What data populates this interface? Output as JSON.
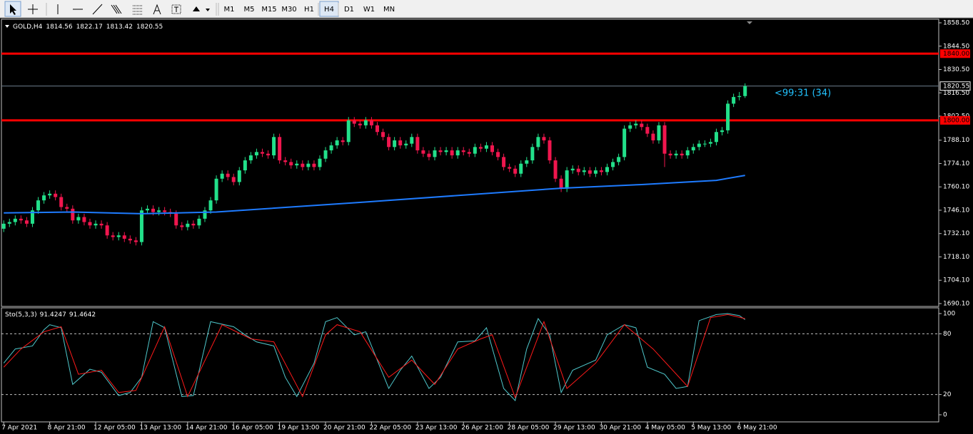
{
  "toolbar": {
    "timeframes": [
      "M1",
      "M5",
      "M15",
      "M30",
      "H1",
      "H4",
      "D1",
      "W1",
      "MN"
    ],
    "active": 5
  },
  "chart_data": [
    {
      "type": "candlestick",
      "symbol": "GOLD,H4",
      "open": [
        1735,
        1738,
        1739,
        1741,
        1740,
        1738,
        1746,
        1752,
        1755,
        1756,
        1754,
        1748,
        1747,
        1740,
        1742,
        1739,
        1737,
        1738,
        1737,
        1731,
        1730,
        1731,
        1729,
        1728,
        1727,
        1746,
        1747,
        1745,
        1746,
        1745,
        1744,
        1737,
        1736,
        1738,
        1737,
        1741,
        1746,
        1752,
        1765,
        1768,
        1766,
        1763,
        1770,
        1776,
        1779,
        1781,
        1780,
        1779,
        1790,
        1776,
        1775,
        1773,
        1774,
        1772,
        1774,
        1772,
        1777,
        1782,
        1785,
        1788,
        1787,
        1800,
        1798,
        1797,
        1800,
        1797,
        1793,
        1790,
        1784,
        1788,
        1785,
        1786,
        1790,
        1782,
        1780,
        1778,
        1782,
        1781,
        1782,
        1779,
        1782,
        1781,
        1780,
        1784,
        1783,
        1785,
        1781,
        1778,
        1772,
        1771,
        1768,
        1774,
        1776,
        1784,
        1790,
        1788,
        1776,
        1765,
        1759,
        1770,
        1771,
        1769,
        1770,
        1768,
        1770,
        1769,
        1772,
        1775,
        1778,
        1795,
        1797,
        1798,
        1796,
        1792,
        1788,
        1797,
        1780,
        1779,
        1780,
        1779,
        1782,
        1784,
        1786,
        1786,
        1787,
        1793,
        1794,
        1810,
        1814,
        1814.56
      ],
      "high": [
        1740,
        1741,
        1743,
        1743,
        1742,
        1748,
        1754,
        1757,
        1758,
        1758,
        1756,
        1750,
        1749,
        1744,
        1744,
        1741,
        1740,
        1740,
        1739,
        1733,
        1733,
        1733,
        1731,
        1730,
        1748,
        1749,
        1749,
        1748,
        1748,
        1747,
        1746,
        1739,
        1740,
        1740,
        1743,
        1748,
        1754,
        1767,
        1770,
        1770,
        1768,
        1772,
        1778,
        1781,
        1783,
        1783,
        1782,
        1792,
        1792,
        1778,
        1777,
        1776,
        1776,
        1776,
        1776,
        1779,
        1784,
        1787,
        1790,
        1790,
        1802,
        1802,
        1800,
        1802,
        1802,
        1799,
        1795,
        1792,
        1790,
        1790,
        1788,
        1792,
        1792,
        1784,
        1782,
        1784,
        1784,
        1784,
        1784,
        1784,
        1784,
        1783,
        1786,
        1786,
        1787,
        1787,
        1783,
        1780,
        1774,
        1773,
        1776,
        1778,
        1786,
        1792,
        1792,
        1790,
        1778,
        1767,
        1772,
        1773,
        1773,
        1772,
        1772,
        1772,
        1772,
        1774,
        1777,
        1780,
        1797,
        1799,
        1800,
        1800,
        1798,
        1794,
        1799,
        1799,
        1782,
        1782,
        1782,
        1784,
        1786,
        1788,
        1788,
        1789,
        1795,
        1796,
        1812,
        1816,
        1817,
        1822.17
      ],
      "low": [
        1733,
        1736,
        1737,
        1738,
        1736,
        1736,
        1744,
        1750,
        1753,
        1752,
        1746,
        1745,
        1738,
        1738,
        1737,
        1735,
        1735,
        1735,
        1729,
        1728,
        1728,
        1727,
        1726,
        1725,
        1725,
        1744,
        1743,
        1743,
        1743,
        1742,
        1735,
        1734,
        1734,
        1735,
        1735,
        1739,
        1744,
        1750,
        1763,
        1764,
        1761,
        1761,
        1768,
        1774,
        1777,
        1778,
        1777,
        1777,
        1774,
        1773,
        1771,
        1771,
        1770,
        1770,
        1770,
        1770,
        1775,
        1780,
        1783,
        1785,
        1785,
        1796,
        1795,
        1795,
        1795,
        1791,
        1788,
        1782,
        1782,
        1783,
        1783,
        1784,
        1780,
        1778,
        1776,
        1776,
        1779,
        1779,
        1777,
        1777,
        1779,
        1778,
        1778,
        1781,
        1781,
        1779,
        1776,
        1770,
        1769,
        1766,
        1766,
        1772,
        1774,
        1782,
        1786,
        1774,
        1763,
        1757,
        1757,
        1768,
        1767,
        1767,
        1766,
        1766,
        1767,
        1767,
        1770,
        1773,
        1776,
        1793,
        1795,
        1794,
        1790,
        1786,
        1786,
        1772,
        1777,
        1777,
        1777,
        1777,
        1780,
        1782,
        1784,
        1784,
        1785,
        1791,
        1792,
        1808,
        1812,
        1813.42
      ],
      "close": [
        1738,
        1739,
        1741,
        1740,
        1738,
        1746,
        1752,
        1755,
        1756,
        1754,
        1748,
        1747,
        1740,
        1742,
        1739,
        1737,
        1738,
        1737,
        1731,
        1730,
        1731,
        1729,
        1728,
        1727,
        1746,
        1747,
        1745,
        1746,
        1745,
        1744,
        1737,
        1736,
        1738,
        1737,
        1741,
        1746,
        1752,
        1765,
        1768,
        1766,
        1763,
        1770,
        1776,
        1779,
        1781,
        1780,
        1779,
        1790,
        1776,
        1775,
        1773,
        1774,
        1772,
        1774,
        1772,
        1777,
        1782,
        1785,
        1788,
        1787,
        1800,
        1798,
        1797,
        1800,
        1797,
        1793,
        1790,
        1784,
        1788,
        1785,
        1786,
        1790,
        1782,
        1780,
        1778,
        1782,
        1781,
        1782,
        1779,
        1782,
        1781,
        1780,
        1784,
        1783,
        1785,
        1781,
        1778,
        1772,
        1771,
        1768,
        1774,
        1776,
        1784,
        1790,
        1788,
        1776,
        1765,
        1759,
        1770,
        1771,
        1769,
        1770,
        1768,
        1770,
        1769,
        1772,
        1775,
        1778,
        1795,
        1797,
        1798,
        1796,
        1792,
        1788,
        1797,
        1780,
        1779,
        1780,
        1779,
        1782,
        1784,
        1786,
        1786,
        1787,
        1793,
        1794,
        1810,
        1814,
        1814.56,
        1820.55
      ],
      "up_color": "#22e08a",
      "down_color": "#f0164e",
      "ma": {
        "color": "#1e7bff",
        "x": [
          0,
          12,
          24,
          37,
          62,
          97,
          111,
          124,
          129
        ],
        "values": [
          1744.5,
          1745,
          1744,
          1745,
          1750.8,
          1759.3,
          1761.5,
          1764,
          1767
        ]
      },
      "hlines": [
        {
          "value": 1840,
          "label": "1840.00",
          "color": "#ff0000"
        },
        {
          "value": 1800,
          "label": "1800.00",
          "color": "#ff0000"
        }
      ],
      "price_line": {
        "value": 1820.55,
        "label": "1820.55",
        "color": "#6f7f90"
      },
      "countdown": "<99:31 (34)",
      "ylim": [
        1690.1,
        1858.5
      ],
      "yticks": [
        {
          "value": 1858.5,
          "label": "1858.50"
        },
        {
          "value": 1844.5,
          "label": "1844.50"
        },
        {
          "value": 1830.5,
          "label": "1830.50"
        },
        {
          "value": 1816.5,
          "label": "1816.50"
        },
        {
          "value": 1802.5,
          "label": "1802.50"
        },
        {
          "value": 1788.1,
          "label": "1788.10"
        },
        {
          "value": 1774.1,
          "label": "1774.10"
        },
        {
          "value": 1760.1,
          "label": "1760.10"
        },
        {
          "value": 1746.1,
          "label": "1746.10"
        },
        {
          "value": 1732.1,
          "label": "1732.10"
        },
        {
          "value": 1718.1,
          "label": "1718.10"
        },
        {
          "value": 1704.1,
          "label": "1704.10"
        },
        {
          "value": 1690.1,
          "label": "1690.10"
        }
      ],
      "xlim": [
        -0.4,
        162.7
      ],
      "xticks": [
        {
          "value": 0,
          "label": "7 Apr 2021"
        },
        {
          "value": 8,
          "label": "8 Apr 21:00"
        },
        {
          "value": 16,
          "label": "12 Apr 05:00"
        },
        {
          "value": 24,
          "label": "13 Apr 13:00"
        },
        {
          "value": 32,
          "label": "14 Apr 21:00"
        },
        {
          "value": 40,
          "label": "16 Apr 05:00"
        },
        {
          "value": 48,
          "label": "19 Apr 13:00"
        },
        {
          "value": 56,
          "label": "20 Apr 21:00"
        },
        {
          "value": 64,
          "label": "22 Apr 05:00"
        },
        {
          "value": 72,
          "label": "23 Apr 13:00"
        },
        {
          "value": 80,
          "label": "26 Apr 21:00"
        },
        {
          "value": 88,
          "label": "28 Apr 05:00"
        },
        {
          "value": 96,
          "label": "29 Apr 13:00"
        },
        {
          "value": 104,
          "label": "30 Apr 21:00"
        },
        {
          "value": 112,
          "label": "4 May 05:00"
        },
        {
          "value": 120,
          "label": "5 May 13:00"
        },
        {
          "value": 128,
          "label": "6 May 21:00"
        }
      ]
    },
    {
      "type": "line",
      "title": "Sto(5,3,3)",
      "readout": [
        91.4247,
        91.4642
      ],
      "ylim": [
        0,
        100
      ],
      "yticks": [
        100,
        80,
        20,
        0
      ],
      "levels": [
        80,
        20
      ],
      "xlim": [
        -0.4,
        162.7
      ],
      "series": [
        {
          "color": "#4fc8cc",
          "x": [
            0,
            2,
            5,
            7,
            8,
            10,
            12,
            15,
            17,
            20,
            22,
            24,
            26,
            28,
            31,
            33,
            36,
            40,
            42,
            44,
            47,
            49,
            51,
            54,
            56,
            58,
            61,
            63,
            67,
            69,
            71,
            74,
            76,
            79,
            82,
            84,
            87,
            89,
            91,
            93,
            95,
            97,
            99,
            103,
            105,
            108,
            110,
            112,
            115,
            117,
            119,
            121,
            124,
            126,
            128,
            129
          ],
          "values": [
            51,
            65,
            68,
            84,
            89,
            86,
            30,
            45,
            42,
            19,
            22,
            37,
            92,
            86,
            18,
            19,
            92,
            87,
            79,
            72,
            68,
            37,
            18,
            51,
            92,
            96,
            79,
            82,
            26,
            44,
            58,
            26,
            37,
            72,
            73,
            86,
            26,
            14,
            65,
            95,
            79,
            22,
            44,
            54,
            79,
            89,
            86,
            47,
            40,
            26,
            28,
            93,
            99,
            100,
            98,
            94
          ]
        },
        {
          "color": "#ff1a1a",
          "x": [
            0,
            3,
            7,
            10,
            13,
            17,
            20,
            23,
            28,
            32,
            38,
            43,
            47,
            52,
            56,
            58,
            62,
            67,
            71,
            75,
            79,
            83,
            85,
            89,
            94,
            98,
            103,
            108,
            113,
            119,
            123,
            126,
            129
          ],
          "values": [
            47,
            65,
            82,
            87,
            40,
            44,
            22,
            24,
            87,
            18,
            89,
            75,
            72,
            18,
            79,
            89,
            82,
            37,
            54,
            30,
            65,
            75,
            79,
            17,
            92,
            26,
            51,
            89,
            65,
            28,
            96,
            99,
            95
          ]
        }
      ]
    }
  ]
}
